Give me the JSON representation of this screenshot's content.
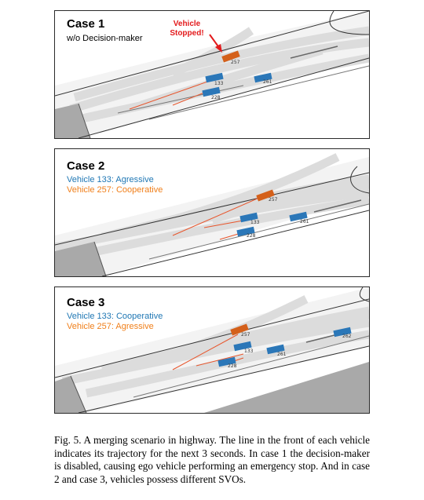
{
  "colors": {
    "aggressive": "#1f77b4",
    "cooperative": "#f07f1a",
    "alert": "#e31a1c",
    "vehicle_blue": "#2b77b8",
    "vehicle_orange": "#d4601a",
    "trajectory": "#e8552b"
  },
  "cases": [
    {
      "title": "Case 1",
      "line1": "w/o Decision-maker",
      "line2": "",
      "stopped_line1": "Vehicle",
      "stopped_line2": "Stopped!",
      "vehicles": {
        "v257": "257",
        "v133": "133",
        "v228": "228",
        "v261": "261",
        "v262": ""
      }
    },
    {
      "title": "Case 2",
      "line1": "Vehicle 133: Agressive",
      "line2": "Vehicle 257: Cooperative",
      "vehicles": {
        "v257": "257",
        "v133": "133",
        "v228": "228",
        "v261": "261",
        "v262": ""
      }
    },
    {
      "title": "Case 3",
      "line1": "Vehicle 133: Cooperative",
      "line2": "Vehicle 257: Agressive",
      "vehicles": {
        "v257": "257",
        "v133": "133",
        "v228": "228",
        "v261": "261",
        "v262": "262"
      }
    }
  ],
  "caption": "Fig. 5.   A merging scenario in highway. The line in the front of each vehicle indicates its trajectory for the next 3 seconds. In case 1 the decision-maker is disabled, causing ego vehicle performing an emergency stop. And in case 2 and case 3, vehicles possess different SVOs."
}
